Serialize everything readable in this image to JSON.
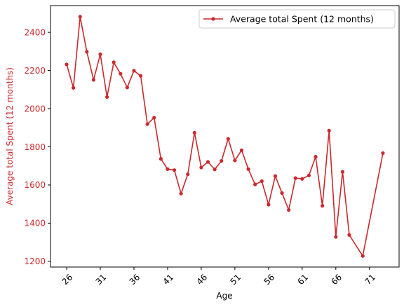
{
  "chart_data": {
    "type": "line",
    "title": "",
    "xlabel": "Age",
    "ylabel": "Average total Spent (12 months)",
    "xlim": [
      23.6,
      75.4
    ],
    "ylim": [
      1170,
      2540
    ],
    "xticks": [
      26,
      31,
      36,
      41,
      46,
      51,
      56,
      61,
      66,
      71
    ],
    "yticks": [
      1200,
      1400,
      1600,
      1800,
      2000,
      2200,
      2400
    ],
    "grid": false,
    "legend_position": "top-right",
    "colors": {
      "series": "#c9292e",
      "ylabel": "#c9292e",
      "ytick": "#c9292e",
      "text": "#000000"
    },
    "series": [
      {
        "name": "Average total Spent (12 months)",
        "x": [
          26,
          27,
          28,
          29,
          30,
          31,
          32,
          33,
          34,
          35,
          36,
          37,
          38,
          39,
          40,
          41,
          42,
          43,
          44,
          45,
          46,
          47,
          48,
          49,
          50,
          51,
          52,
          53,
          54,
          55,
          56,
          57,
          58,
          59,
          60,
          61,
          62,
          63,
          64,
          65,
          66,
          67,
          68,
          70,
          73
        ],
        "y": [
          2232,
          2109,
          2482,
          2298,
          2151,
          2285,
          2061,
          2243,
          2183,
          2111,
          2199,
          2172,
          1919,
          1953,
          1737,
          1683,
          1678,
          1555,
          1656,
          1874,
          1692,
          1721,
          1682,
          1726,
          1842,
          1729,
          1782,
          1683,
          1603,
          1620,
          1497,
          1647,
          1558,
          1469,
          1636,
          1632,
          1650,
          1748,
          1491,
          1885,
          1328,
          1669,
          1338,
          1228,
          1767
        ]
      }
    ]
  }
}
